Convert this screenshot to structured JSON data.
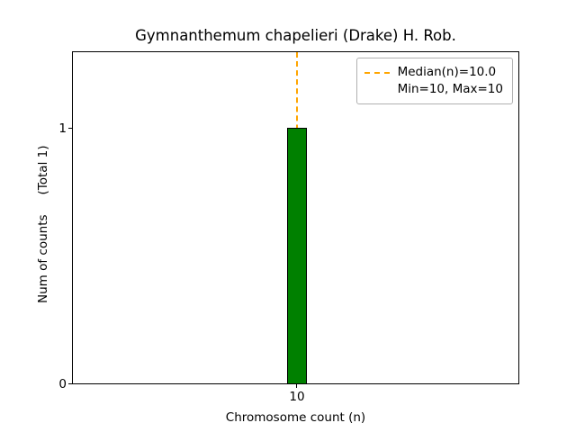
{
  "title": "Gymnanthemum chapelieri (Drake) H. Rob.",
  "axes": {
    "xlabel": "Chromosome count (n)",
    "ylabel_main": "Num of counts",
    "ylabel_total": "(Total 1)",
    "x_ticks": [
      "10"
    ],
    "y_ticks": [
      "0",
      "1"
    ]
  },
  "legend": {
    "median_label": "Median(n)=10.0",
    "minmax_label": "Min=10, Max=10"
  },
  "colors": {
    "bar_fill": "#008000",
    "bar_edge": "#000000",
    "median_line": "#ffa500"
  },
  "chart_data": {
    "type": "bar",
    "categories": [
      10
    ],
    "values": [
      1
    ],
    "title": "Gymnanthemum chapelieri (Drake) H. Rob.",
    "xlabel": "Chromosome count (n)",
    "ylabel": "Num of counts (Total 1)",
    "ylim": [
      0,
      1.3
    ],
    "y_tick_values": [
      0,
      1
    ],
    "total_counts": 1,
    "median_n": 10.0,
    "min_n": 10,
    "max_n": 10,
    "legend_position": "upper right",
    "grid": false,
    "bar_color": "#008000",
    "median_line_color": "#ffa500",
    "median_line_style": "dashed"
  }
}
